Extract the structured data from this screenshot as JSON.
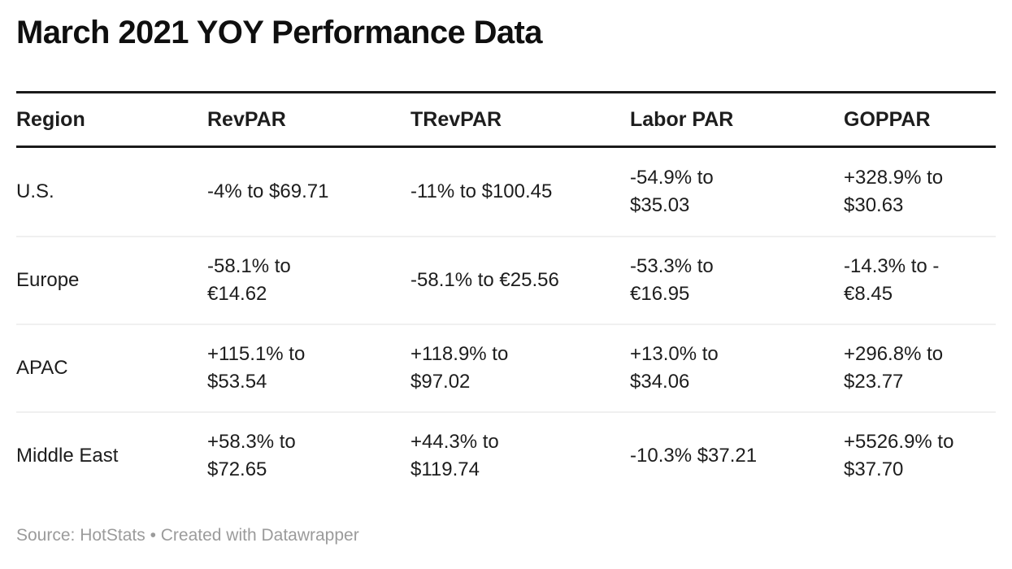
{
  "title": "March 2021 YOY Performance Data",
  "chart_data": {
    "type": "table",
    "title": "March 2021 YOY Performance Data",
    "columns": [
      "Region",
      "RevPAR",
      "TRevPAR",
      "Labor PAR",
      "GOPPAR"
    ],
    "rows": [
      [
        "U.S.",
        "-4% to $69.71",
        "-11% to $100.45",
        "-54.9% to\n$35.03",
        "+328.9% to\n$30.63"
      ],
      [
        "Europe",
        "-58.1% to\n€14.62",
        "-58.1% to €25.56",
        "-53.3% to\n€16.95",
        "-14.3% to -\n€8.45"
      ],
      [
        "APAC",
        "+115.1% to\n$53.54",
        "+118.9% to\n$97.02",
        "+13.0% to\n$34.06",
        "+296.8% to\n$23.77"
      ],
      [
        "Middle East",
        "+58.3% to\n$72.65",
        "+44.3% to\n$119.74",
        "-10.3% $37.21",
        "+5526.9% to\n$37.70"
      ]
    ],
    "layout_hints": {
      "header_rule_color": "#1a1a1a",
      "row_separator_color": "#f0f0f0",
      "grid": "horizontal-only"
    }
  },
  "footer": {
    "source": "Source: HotStats • Created with Datawrapper"
  },
  "colors": {
    "background": "#ffffff",
    "text": "#1d1d1d",
    "title_text": "#0f0f0f",
    "rule": "#1a1a1a",
    "separator": "#f0f0f0",
    "footer_text": "#9b9b9b"
  }
}
